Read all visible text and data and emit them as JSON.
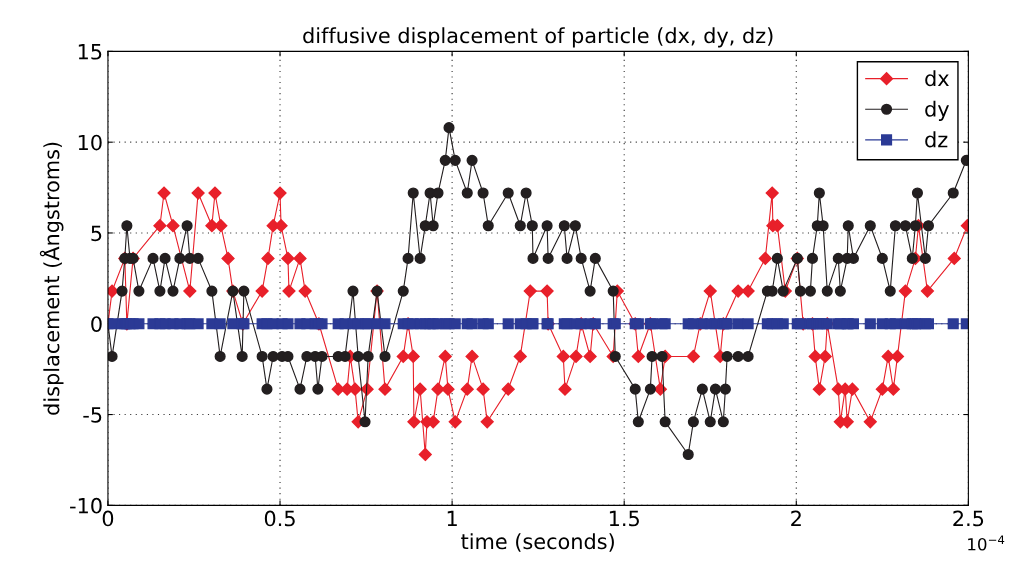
{
  "chart_data": {
    "type": "line",
    "title": "diffusive displacement of particle (dx, dy, dz)",
    "xlabel": "time (seconds)",
    "ylabel": "displacement (Ångstroms)",
    "annotations": [
      "10$^{−4}$"
    ],
    "xlim": [
      0,
      2.5
    ],
    "xticks": [
      0,
      0.5,
      1,
      1.5,
      2,
      2.5
    ],
    "ylim": [
      -10,
      15
    ],
    "yticks": [
      -10,
      -5,
      0,
      5,
      10,
      15
    ],
    "grid": true,
    "legend": "top right",
    "line_style": "solid",
    "series": [
      {
        "name": "dx",
        "color": "#e8202a",
        "marker": "diamond",
        "x": [
          0,
          0.012,
          0.049,
          0.055,
          0.073,
          0.151,
          0.163,
          0.189,
          0.238,
          0.262,
          0.302,
          0.311,
          0.328,
          0.349,
          0.363,
          0.392,
          0.448,
          0.465,
          0.48,
          0.5,
          0.503,
          0.523,
          0.526,
          0.558,
          0.573,
          0.613,
          0.669,
          0.695,
          0.704,
          0.718,
          0.727,
          0.753,
          0.782,
          0.805,
          0.858,
          0.872,
          0.887,
          0.889,
          0.907,
          0.922,
          0.927,
          0.945,
          0.959,
          0.98,
          0.988,
          1.009,
          1.044,
          1.058,
          1.09,
          1.102,
          1.163,
          1.198,
          1.227,
          1.276,
          1.279,
          1.323,
          1.328,
          1.36,
          1.375,
          1.401,
          1.41,
          1.468,
          1.48,
          1.532,
          1.541,
          1.576,
          1.605,
          1.619,
          1.701,
          1.721,
          1.75,
          1.779,
          1.788,
          1.831,
          1.86,
          1.91,
          1.93,
          1.932,
          1.945,
          1.968,
          2.003,
          2.02,
          2.047,
          2.055,
          2.067,
          2.084,
          2.09,
          2.122,
          2.128,
          2.142,
          2.148,
          2.163,
          2.215,
          2.25,
          2.267,
          2.282,
          2.294,
          2.317,
          2.346,
          2.355,
          2.381,
          2.459,
          2.497
        ],
        "values": [
          0,
          1.8,
          3.6,
          0,
          3.6,
          5.4,
          7.2,
          5.4,
          1.8,
          7.2,
          5.4,
          7.2,
          5.4,
          3.6,
          1.8,
          0,
          1.8,
          3.6,
          5.4,
          7.2,
          5.4,
          3.6,
          1.8,
          3.6,
          1.8,
          0,
          -3.6,
          -3.6,
          -1.8,
          -3.6,
          -5.4,
          -3.6,
          1.8,
          -3.6,
          -1.8,
          0,
          -1.8,
          -5.4,
          -3.6,
          -7.2,
          -5.4,
          -5.4,
          -3.6,
          -1.8,
          -3.6,
          -5.4,
          -3.6,
          -1.8,
          -3.6,
          -5.4,
          -3.6,
          -1.8,
          1.8,
          1.8,
          0,
          -1.8,
          -3.6,
          -1.8,
          0,
          -1.8,
          0,
          -1.8,
          1.8,
          0,
          -1.8,
          0,
          -3.6,
          -1.8,
          -1.8,
          0,
          1.8,
          -1.8,
          0,
          1.8,
          1.8,
          3.6,
          7.2,
          5.4,
          5.4,
          1.8,
          3.6,
          0,
          0,
          -1.8,
          -3.6,
          -1.8,
          0,
          -3.6,
          -5.4,
          -3.6,
          -5.4,
          -3.6,
          -5.4,
          -3.6,
          -1.8,
          -3.6,
          -1.8,
          1.8,
          3.6,
          5.4,
          1.8,
          3.6,
          5.4
        ]
      },
      {
        "name": "dy",
        "color": "#231f20",
        "marker": "circle",
        "x": [
          0,
          0.012,
          0.041,
          0.049,
          0.055,
          0.064,
          0.073,
          0.09,
          0.131,
          0.151,
          0.166,
          0.189,
          0.209,
          0.23,
          0.238,
          0.262,
          0.302,
          0.326,
          0.363,
          0.39,
          0.395,
          0.448,
          0.462,
          0.48,
          0.506,
          0.523,
          0.558,
          0.578,
          0.602,
          0.61,
          0.622,
          0.669,
          0.689,
          0.712,
          0.727,
          0.747,
          0.756,
          0.782,
          0.805,
          0.858,
          0.872,
          0.887,
          0.907,
          0.922,
          0.936,
          0.945,
          0.959,
          0.98,
          0.991,
          1.009,
          1.044,
          1.058,
          1.09,
          1.105,
          1.163,
          1.198,
          1.215,
          1.233,
          1.235,
          1.276,
          1.279,
          1.326,
          1.334,
          1.358,
          1.375,
          1.401,
          1.416,
          1.468,
          1.474,
          1.532,
          1.541,
          1.576,
          1.581,
          1.61,
          1.619,
          1.686,
          1.701,
          1.727,
          1.75,
          1.765,
          1.788,
          1.794,
          1.799,
          1.831,
          1.86,
          1.916,
          1.93,
          1.945,
          1.962,
          2.003,
          2.012,
          2.041,
          2.047,
          2.061,
          2.067,
          2.078,
          2.09,
          2.122,
          2.128,
          2.148,
          2.151,
          2.166,
          2.215,
          2.25,
          2.273,
          2.288,
          2.317,
          2.337,
          2.346,
          2.352,
          2.375,
          2.384,
          2.456,
          2.494
        ],
        "values": [
          0,
          -1.8,
          1.8,
          3.6,
          5.4,
          3.6,
          3.6,
          1.8,
          3.6,
          1.8,
          3.6,
          1.8,
          3.6,
          5.4,
          3.6,
          3.6,
          1.8,
          -1.8,
          1.8,
          -1.8,
          1.8,
          -1.8,
          -3.6,
          -1.8,
          -1.8,
          -1.8,
          -3.6,
          -1.8,
          -1.8,
          -3.6,
          -1.8,
          -1.8,
          -1.8,
          1.8,
          -1.8,
          -5.4,
          -1.8,
          1.8,
          -1.8,
          1.8,
          3.6,
          7.2,
          3.6,
          5.4,
          7.2,
          5.4,
          7.2,
          9,
          10.8,
          9,
          7.2,
          9,
          7.2,
          5.4,
          7.2,
          5.4,
          7.2,
          5.4,
          3.6,
          5.4,
          3.6,
          5.4,
          3.6,
          5.4,
          3.6,
          1.8,
          3.6,
          1.8,
          -1.8,
          -3.6,
          -5.4,
          -3.6,
          -1.8,
          -1.8,
          -5.4,
          -7.2,
          -5.4,
          -3.6,
          -5.4,
          -3.6,
          -5.4,
          -3.6,
          -1.8,
          -1.8,
          -1.8,
          1.8,
          1.8,
          3.6,
          1.8,
          3.6,
          1.8,
          1.8,
          3.6,
          5.4,
          7.2,
          5.4,
          1.8,
          3.6,
          1.8,
          3.6,
          5.4,
          3.6,
          5.4,
          3.6,
          1.8,
          5.4,
          5.4,
          3.6,
          5.4,
          7.2,
          3.6,
          5.4,
          7.2,
          9
        ]
      },
      {
        "name": "dz",
        "color": "#2b3a95",
        "marker": "square",
        "x": [
          0,
          0.012,
          0.041,
          0.049,
          0.055,
          0.064,
          0.073,
          0.09,
          0.131,
          0.151,
          0.166,
          0.189,
          0.209,
          0.23,
          0.238,
          0.262,
          0.302,
          0.326,
          0.363,
          0.39,
          0.395,
          0.448,
          0.462,
          0.48,
          0.506,
          0.523,
          0.558,
          0.578,
          0.602,
          0.61,
          0.622,
          0.669,
          0.689,
          0.712,
          0.727,
          0.747,
          0.756,
          0.782,
          0.805,
          0.858,
          0.872,
          0.887,
          0.907,
          0.922,
          0.936,
          0.945,
          0.959,
          0.98,
          0.991,
          1.009,
          1.044,
          1.058,
          1.09,
          1.105,
          1.163,
          1.198,
          1.215,
          1.233,
          1.235,
          1.276,
          1.279,
          1.326,
          1.334,
          1.358,
          1.375,
          1.401,
          1.416,
          1.468,
          1.474,
          1.532,
          1.541,
          1.576,
          1.581,
          1.61,
          1.619,
          1.686,
          1.701,
          1.727,
          1.75,
          1.765,
          1.788,
          1.794,
          1.799,
          1.831,
          1.86,
          1.916,
          1.93,
          1.945,
          1.962,
          2.003,
          2.012,
          2.041,
          2.047,
          2.061,
          2.067,
          2.078,
          2.09,
          2.122,
          2.128,
          2.148,
          2.151,
          2.166,
          2.215,
          2.25,
          2.273,
          2.288,
          2.317,
          2.337,
          2.346,
          2.352,
          2.375,
          2.384,
          2.456,
          2.494
        ],
        "values": [
          0,
          0,
          0,
          0,
          0,
          0,
          0,
          0,
          0,
          0,
          0,
          0,
          0,
          0,
          0,
          0,
          0,
          0,
          0,
          0,
          0,
          0,
          0,
          0,
          0,
          0,
          0,
          0,
          0,
          0,
          0,
          0,
          0,
          0,
          0,
          0,
          0,
          0,
          0,
          0,
          0,
          0,
          0,
          0,
          0,
          0,
          0,
          0,
          0,
          0,
          0,
          0,
          0,
          0,
          0,
          0,
          0,
          0,
          0,
          0,
          0,
          0,
          0,
          0,
          0,
          0,
          0,
          0,
          0,
          0,
          0,
          0,
          0,
          0,
          0,
          0,
          0,
          0,
          0,
          0,
          0,
          0,
          0,
          0,
          0,
          0,
          0,
          0,
          0,
          0,
          0,
          0,
          0,
          0,
          0,
          0,
          0,
          0,
          0,
          0,
          0,
          0,
          0,
          0,
          0,
          0,
          0,
          0,
          0,
          0,
          0,
          0,
          0,
          0
        ]
      }
    ]
  }
}
